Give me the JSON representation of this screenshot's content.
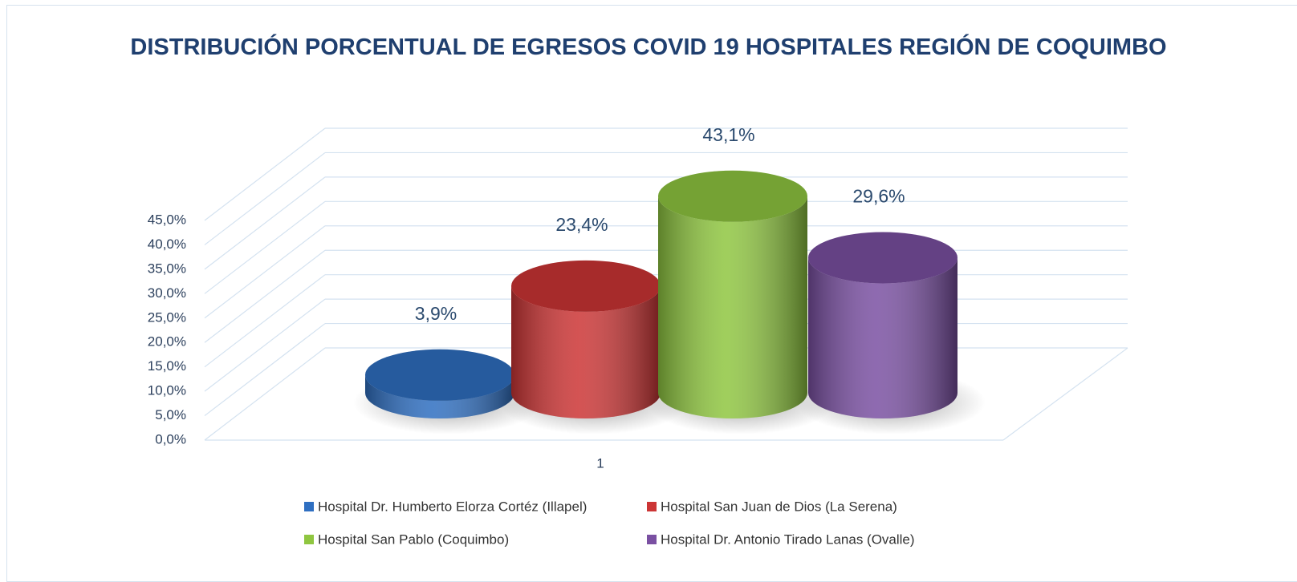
{
  "chart_data": {
    "type": "bar3d",
    "title": "DISTRIBUCIÓN PORCENTUAL DE EGRESOS COVID 19 HOSPITALES REGIÓN DE COQUIMBO",
    "categories": [
      "1"
    ],
    "series": [
      {
        "name": "Hospital Dr. Humberto Elorza Cortéz (Illapel)",
        "color": "#2f6fc1",
        "values": [
          3.9
        ],
        "value_labels": [
          "3,9%"
        ]
      },
      {
        "name": "Hospital San Juan de Dios (La Serena)",
        "color": "#cc3535",
        "values": [
          23.4
        ],
        "value_labels": [
          "23,4%"
        ]
      },
      {
        "name": "Hospital San Pablo (Coquimbo)",
        "color": "#8fc640",
        "values": [
          43.1
        ],
        "value_labels": [
          "43,1%"
        ]
      },
      {
        "name": "Hospital Dr. Antonio Tirado Lanas (Ovalle)",
        "color": "#7a50a2",
        "values": [
          29.6
        ],
        "value_labels": [
          "29,6%"
        ]
      }
    ],
    "ylim": [
      0,
      45
    ],
    "yticks": [
      {
        "value": 0,
        "label": "0,0%"
      },
      {
        "value": 5,
        "label": "5,0%"
      },
      {
        "value": 10,
        "label": "10,0%"
      },
      {
        "value": 15,
        "label": "15,0%"
      },
      {
        "value": 20,
        "label": "20,0%"
      },
      {
        "value": 25,
        "label": "25,0%"
      },
      {
        "value": 30,
        "label": "30,0%"
      },
      {
        "value": 35,
        "label": "35,0%"
      },
      {
        "value": 40,
        "label": "40,0%"
      },
      {
        "value": 45,
        "label": "45,0%"
      }
    ],
    "grid": true
  }
}
